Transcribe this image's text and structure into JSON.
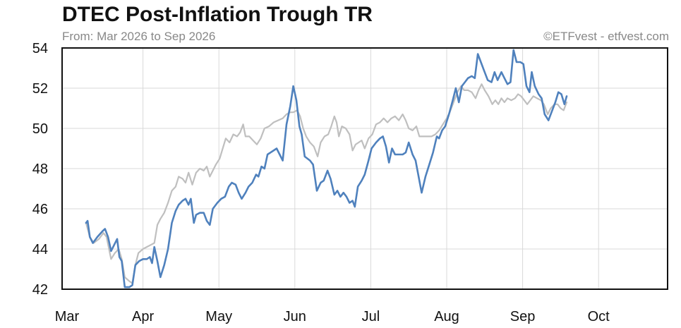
{
  "chart_data": {
    "type": "line",
    "title": "DTEC Post-Inflation Trough TR",
    "subtitle": "From: Mar 2026 to Sep 2026",
    "credit": "©ETFvest - etfvest.com",
    "xlabel": "",
    "ylabel": "",
    "ylim": [
      42,
      54
    ],
    "yticks": [
      42,
      44,
      46,
      48,
      50,
      52,
      54
    ],
    "xlim": [
      0,
      8
    ],
    "months": [
      "Mar",
      "Apr",
      "May",
      "Jun",
      "Jul",
      "Aug",
      "Sep",
      "Oct"
    ],
    "grid": true,
    "series": [
      {
        "color": "#4f81bd",
        "points": [
          [
            0.25,
            45.3
          ],
          [
            0.27,
            45.4
          ],
          [
            0.3,
            44.6
          ],
          [
            0.34,
            44.3
          ],
          [
            0.4,
            44.6
          ],
          [
            0.47,
            44.9
          ],
          [
            0.5,
            45.0
          ],
          [
            0.54,
            44.6
          ],
          [
            0.58,
            43.9
          ],
          [
            0.62,
            44.2
          ],
          [
            0.66,
            44.5
          ],
          [
            0.69,
            43.6
          ],
          [
            0.72,
            43.4
          ],
          [
            0.76,
            42.1
          ],
          [
            0.82,
            42.1
          ],
          [
            0.86,
            42.2
          ],
          [
            0.9,
            43.2
          ],
          [
            0.95,
            43.4
          ],
          [
            1.0,
            43.5
          ],
          [
            1.05,
            43.5
          ],
          [
            1.09,
            43.6
          ],
          [
            1.12,
            43.3
          ],
          [
            1.15,
            44.1
          ],
          [
            1.19,
            43.4
          ],
          [
            1.23,
            42.6
          ],
          [
            1.28,
            43.2
          ],
          [
            1.33,
            44.0
          ],
          [
            1.38,
            45.3
          ],
          [
            1.43,
            45.9
          ],
          [
            1.47,
            46.2
          ],
          [
            1.52,
            46.4
          ],
          [
            1.56,
            46.5
          ],
          [
            1.6,
            46.2
          ],
          [
            1.63,
            46.5
          ],
          [
            1.67,
            45.3
          ],
          [
            1.7,
            45.7
          ],
          [
            1.75,
            45.8
          ],
          [
            1.8,
            45.8
          ],
          [
            1.84,
            45.4
          ],
          [
            1.88,
            45.2
          ],
          [
            1.92,
            46.0
          ],
          [
            1.98,
            46.3
          ],
          [
            2.03,
            46.5
          ],
          [
            2.08,
            46.6
          ],
          [
            2.13,
            47.1
          ],
          [
            2.17,
            47.3
          ],
          [
            2.22,
            47.2
          ],
          [
            2.26,
            46.8
          ],
          [
            2.3,
            46.5
          ],
          [
            2.35,
            46.8
          ],
          [
            2.39,
            47.1
          ],
          [
            2.44,
            47.3
          ],
          [
            2.49,
            47.7
          ],
          [
            2.52,
            47.6
          ],
          [
            2.56,
            48.1
          ],
          [
            2.6,
            48.0
          ],
          [
            2.64,
            48.7
          ],
          [
            2.68,
            48.8
          ],
          [
            2.72,
            48.9
          ],
          [
            2.76,
            49.0
          ],
          [
            2.8,
            48.7
          ],
          [
            2.84,
            48.4
          ],
          [
            2.89,
            50.2
          ],
          [
            2.94,
            51.1
          ],
          [
            2.98,
            52.1
          ],
          [
            3.02,
            51.4
          ],
          [
            3.06,
            50.1
          ],
          [
            3.09,
            49.7
          ],
          [
            3.13,
            48.6
          ],
          [
            3.2,
            48.4
          ],
          [
            3.24,
            48.2
          ],
          [
            3.29,
            46.9
          ],
          [
            3.34,
            47.3
          ],
          [
            3.38,
            47.4
          ],
          [
            3.43,
            47.9
          ],
          [
            3.47,
            47.5
          ],
          [
            3.52,
            46.7
          ],
          [
            3.56,
            46.9
          ],
          [
            3.6,
            46.6
          ],
          [
            3.64,
            46.8
          ],
          [
            3.68,
            46.6
          ],
          [
            3.72,
            46.3
          ],
          [
            3.76,
            46.4
          ],
          [
            3.79,
            46.1
          ],
          [
            3.83,
            47.1
          ],
          [
            3.88,
            47.4
          ],
          [
            3.92,
            47.7
          ],
          [
            3.97,
            48.4
          ],
          [
            4.01,
            49.0
          ],
          [
            4.07,
            49.3
          ],
          [
            4.12,
            49.5
          ],
          [
            4.16,
            49.6
          ],
          [
            4.2,
            49.1
          ],
          [
            4.24,
            48.3
          ],
          [
            4.28,
            49.0
          ],
          [
            4.32,
            48.7
          ],
          [
            4.37,
            48.7
          ],
          [
            4.42,
            48.7
          ],
          [
            4.46,
            48.8
          ],
          [
            4.5,
            49.3
          ],
          [
            4.55,
            48.7
          ],
          [
            4.59,
            48.4
          ],
          [
            4.63,
            47.6
          ],
          [
            4.67,
            46.8
          ],
          [
            4.72,
            47.6
          ],
          [
            4.77,
            48.2
          ],
          [
            4.82,
            48.8
          ],
          [
            4.87,
            49.6
          ],
          [
            4.9,
            49.5
          ],
          [
            4.94,
            49.9
          ],
          [
            4.98,
            50.1
          ],
          [
            5.03,
            50.7
          ],
          [
            5.08,
            51.4
          ],
          [
            5.12,
            52.0
          ],
          [
            5.16,
            51.3
          ],
          [
            5.2,
            52.1
          ],
          [
            5.24,
            52.3
          ],
          [
            5.28,
            52.5
          ],
          [
            5.33,
            52.6
          ],
          [
            5.37,
            52.5
          ],
          [
            5.41,
            53.7
          ],
          [
            5.45,
            53.3
          ],
          [
            5.49,
            52.9
          ],
          [
            5.54,
            52.4
          ],
          [
            5.59,
            52.3
          ],
          [
            5.63,
            52.8
          ],
          [
            5.67,
            52.4
          ],
          [
            5.72,
            52.8
          ],
          [
            5.76,
            52.5
          ],
          [
            5.8,
            52.2
          ],
          [
            5.84,
            52.3
          ],
          [
            5.88,
            53.9
          ],
          [
            5.92,
            53.3
          ],
          [
            5.97,
            53.3
          ],
          [
            6.01,
            53.2
          ],
          [
            6.05,
            52.1
          ],
          [
            6.09,
            51.8
          ],
          [
            6.12,
            52.8
          ],
          [
            6.16,
            52.1
          ],
          [
            6.21,
            51.7
          ],
          [
            6.25,
            51.5
          ],
          [
            6.29,
            50.7
          ],
          [
            6.34,
            50.4
          ],
          [
            6.38,
            50.8
          ],
          [
            6.43,
            51.3
          ],
          [
            6.47,
            51.8
          ],
          [
            6.51,
            51.7
          ],
          [
            6.55,
            51.2
          ],
          [
            6.58,
            51.6
          ]
        ]
      },
      {
        "color": "#bfbfbf",
        "points": [
          [
            0.25,
            45.3
          ],
          [
            0.3,
            44.6
          ],
          [
            0.35,
            44.3
          ],
          [
            0.42,
            44.5
          ],
          [
            0.48,
            44.8
          ],
          [
            0.52,
            44.6
          ],
          [
            0.58,
            43.5
          ],
          [
            0.63,
            43.8
          ],
          [
            0.68,
            44.0
          ],
          [
            0.72,
            43.5
          ],
          [
            0.76,
            42.6
          ],
          [
            0.82,
            42.4
          ],
          [
            0.86,
            42.3
          ],
          [
            0.9,
            43.2
          ],
          [
            0.94,
            43.8
          ],
          [
            1.0,
            44.0
          ],
          [
            1.05,
            44.1
          ],
          [
            1.1,
            44.2
          ],
          [
            1.15,
            44.3
          ],
          [
            1.19,
            45.2
          ],
          [
            1.23,
            45.5
          ],
          [
            1.28,
            45.8
          ],
          [
            1.33,
            46.3
          ],
          [
            1.38,
            46.9
          ],
          [
            1.43,
            47.1
          ],
          [
            1.47,
            47.6
          ],
          [
            1.52,
            47.5
          ],
          [
            1.56,
            47.3
          ],
          [
            1.6,
            47.8
          ],
          [
            1.65,
            47.2
          ],
          [
            1.7,
            47.8
          ],
          [
            1.75,
            48.0
          ],
          [
            1.8,
            47.9
          ],
          [
            1.84,
            48.1
          ],
          [
            1.88,
            47.6
          ],
          [
            1.92,
            47.9
          ],
          [
            1.96,
            48.2
          ],
          [
            2.01,
            48.5
          ],
          [
            2.05,
            49.0
          ],
          [
            2.09,
            49.5
          ],
          [
            2.14,
            49.3
          ],
          [
            2.19,
            49.7
          ],
          [
            2.24,
            49.6
          ],
          [
            2.28,
            49.8
          ],
          [
            2.32,
            50.2
          ],
          [
            2.35,
            49.6
          ],
          [
            2.4,
            49.6
          ],
          [
            2.45,
            49.4
          ],
          [
            2.5,
            49.2
          ],
          [
            2.55,
            49.5
          ],
          [
            2.6,
            50.0
          ],
          [
            2.66,
            50.1
          ],
          [
            2.72,
            50.3
          ],
          [
            2.78,
            50.4
          ],
          [
            2.84,
            50.5
          ],
          [
            2.89,
            50.7
          ],
          [
            2.94,
            50.8
          ],
          [
            2.98,
            50.8
          ],
          [
            3.03,
            50.9
          ],
          [
            3.07,
            50.6
          ],
          [
            3.11,
            50.0
          ],
          [
            3.15,
            49.6
          ],
          [
            3.2,
            49.3
          ],
          [
            3.25,
            49.1
          ],
          [
            3.3,
            48.6
          ],
          [
            3.34,
            49.3
          ],
          [
            3.39,
            49.6
          ],
          [
            3.44,
            49.7
          ],
          [
            3.48,
            50.1
          ],
          [
            3.52,
            50.6
          ],
          [
            3.55,
            50.3
          ],
          [
            3.58,
            49.6
          ],
          [
            3.62,
            50.1
          ],
          [
            3.67,
            50.0
          ],
          [
            3.72,
            49.7
          ],
          [
            3.76,
            48.9
          ],
          [
            3.8,
            49.2
          ],
          [
            3.84,
            49.3
          ],
          [
            3.88,
            49.4
          ],
          [
            3.92,
            49.0
          ],
          [
            3.97,
            49.5
          ],
          [
            4.02,
            49.7
          ],
          [
            4.07,
            50.2
          ],
          [
            4.12,
            50.3
          ],
          [
            4.17,
            50.5
          ],
          [
            4.22,
            50.3
          ],
          [
            4.27,
            50.5
          ],
          [
            4.32,
            50.6
          ],
          [
            4.37,
            50.4
          ],
          [
            4.42,
            50.7
          ],
          [
            4.46,
            50.4
          ],
          [
            4.5,
            50.0
          ],
          [
            4.55,
            49.9
          ],
          [
            4.6,
            50.1
          ],
          [
            4.64,
            49.6
          ],
          [
            4.7,
            49.6
          ],
          [
            4.75,
            49.6
          ],
          [
            4.8,
            49.6
          ],
          [
            4.85,
            49.7
          ],
          [
            4.9,
            49.9
          ],
          [
            4.95,
            50.2
          ],
          [
            5.0,
            50.5
          ],
          [
            5.04,
            50.8
          ],
          [
            5.09,
            51.3
          ],
          [
            5.14,
            51.8
          ],
          [
            5.19,
            52.1
          ],
          [
            5.23,
            51.9
          ],
          [
            5.28,
            51.9
          ],
          [
            5.33,
            51.8
          ],
          [
            5.38,
            51.5
          ],
          [
            5.42,
            51.9
          ],
          [
            5.46,
            52.2
          ],
          [
            5.5,
            51.9
          ],
          [
            5.55,
            51.6
          ],
          [
            5.6,
            51.2
          ],
          [
            5.64,
            51.4
          ],
          [
            5.68,
            51.2
          ],
          [
            5.72,
            51.5
          ],
          [
            5.76,
            51.3
          ],
          [
            5.8,
            51.5
          ],
          [
            5.85,
            51.4
          ],
          [
            5.9,
            51.5
          ],
          [
            5.94,
            51.7
          ],
          [
            5.98,
            51.6
          ],
          [
            6.02,
            51.4
          ],
          [
            6.06,
            51.2
          ],
          [
            6.1,
            51.4
          ],
          [
            6.14,
            51.6
          ],
          [
            6.19,
            51.5
          ],
          [
            6.24,
            51.4
          ],
          [
            6.28,
            51.2
          ],
          [
            6.33,
            50.7
          ],
          [
            6.37,
            51.0
          ],
          [
            6.42,
            51.2
          ],
          [
            6.46,
            51.2
          ],
          [
            6.5,
            51.0
          ],
          [
            6.54,
            50.9
          ],
          [
            6.58,
            51.3
          ]
        ]
      }
    ]
  }
}
